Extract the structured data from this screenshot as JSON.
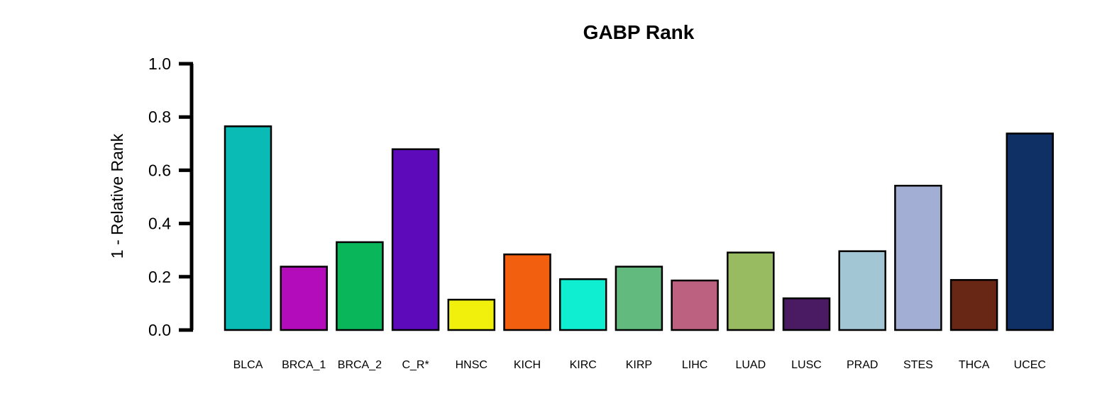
{
  "chart_data": {
    "type": "bar",
    "title": "GABP Rank",
    "ylabel": "1 - Relative Rank",
    "xlabel": "",
    "ylim": [
      0,
      1
    ],
    "yticks": [
      "0.0",
      "0.2",
      "0.4",
      "0.6",
      "0.8",
      "1.0"
    ],
    "categories": [
      "BLCA",
      "BRCA_1",
      "BRCA_2",
      "C_R*",
      "HNSC",
      "KICH",
      "KIRC",
      "KIRP",
      "LIHC",
      "LUAD",
      "LUSC",
      "PRAD",
      "STES",
      "THCA",
      "UCEC"
    ],
    "values": [
      0.765,
      0.238,
      0.33,
      0.679,
      0.114,
      0.284,
      0.191,
      0.238,
      0.186,
      0.291,
      0.119,
      0.296,
      0.542,
      0.188,
      0.738
    ],
    "colors": [
      "#0ABAB5",
      "#B30CBA",
      "#0AB65A",
      "#5C0ABA",
      "#F0F00C",
      "#F2600F",
      "#10EED2",
      "#62BA7E",
      "#BC6280",
      "#98BB62",
      "#4A1A62",
      "#A2C6D4",
      "#A2AED4",
      "#682614",
      "#0E3064"
    ],
    "grid": false,
    "legend": "none"
  }
}
